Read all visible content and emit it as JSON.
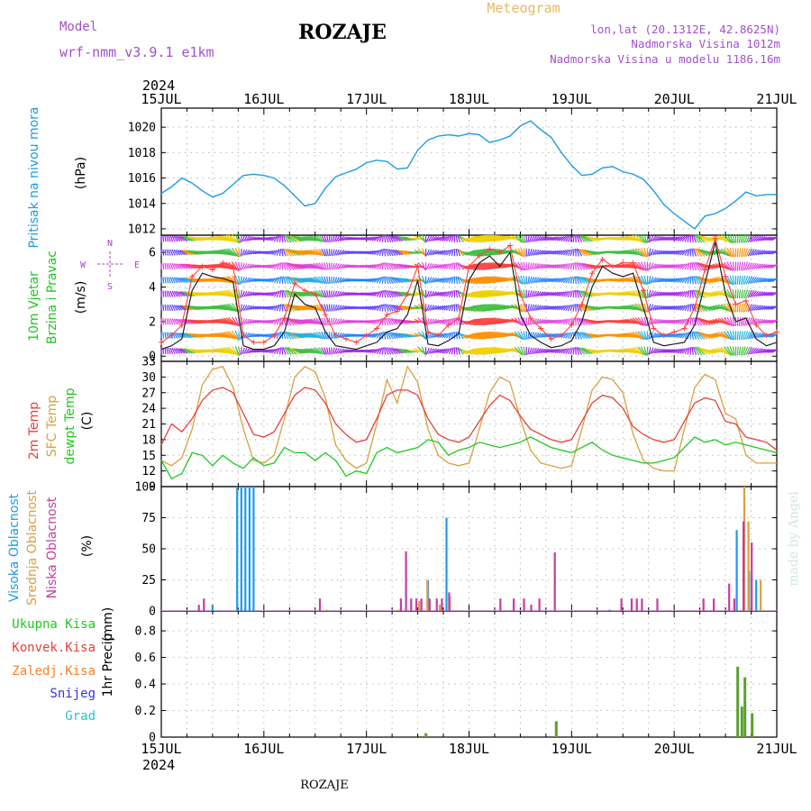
{
  "header": {
    "model_label": "Model",
    "model_name": "wrf-nmm_v3.9.1 e1km",
    "station": "ROZAJE",
    "meteogram": "Meteogram",
    "lonlat": "lon,lat (20.1312E, 42.8625N)",
    "elevation": "Nadmorska Visina 1012m",
    "model_elevation": "Nadmorska Visina u modelu 1186.16m",
    "footer_station": "ROZAJE",
    "credit": "made by Angel"
  },
  "colors": {
    "pressure": "#1e9be6",
    "wind_speed": "#202020",
    "wind_gust": "#ff4040",
    "t2m": "#e8413c",
    "sfc": "#d8a040",
    "dewpt": "#1ec81e",
    "cloud_high": "#1e9be6",
    "cloud_mid": "#d8a040",
    "cloud_low": "#c83ca0",
    "precip_total": "#1ec81e",
    "precip_conv": "#e8413c",
    "precip_frz": "#ff7f27",
    "precip_snow": "#3232dc",
    "precip_grad": "#1ec8c8",
    "wind_label_green": "#1ec81e",
    "compass": "#b040d0",
    "header_purple": "#a050d0",
    "meteogram_color": "#e8b860"
  },
  "chart_data": [
    {
      "type": "line",
      "id": "pressure",
      "ylabel_title": "Pritisak na nivou mora",
      "ylabel_unit": "(hPa)",
      "x_labels": [
        "15JUL",
        "16JUL",
        "17JUL",
        "18JUL",
        "19JUL",
        "20JUL",
        "21JUL"
      ],
      "year": "2024",
      "ylim": [
        1011.5,
        1021.5
      ],
      "yticks": [
        1012,
        1014,
        1016,
        1018,
        1020
      ],
      "x": [
        0,
        0.1,
        0.2,
        0.3,
        0.4,
        0.5,
        0.6,
        0.7,
        0.8,
        0.9,
        1.0,
        1.1,
        1.2,
        1.3,
        1.4,
        1.5,
        1.6,
        1.7,
        1.8,
        1.9,
        2.0,
        2.1,
        2.2,
        2.3,
        2.4,
        2.5,
        2.6,
        2.7,
        2.8,
        2.9,
        3.0,
        3.1,
        3.2,
        3.3,
        3.4,
        3.5,
        3.6,
        3.7,
        3.8,
        3.9,
        4.0,
        4.1,
        4.2,
        4.3,
        4.4,
        4.5,
        4.6,
        4.7,
        4.8,
        4.9,
        5.0,
        5.1,
        5.2,
        5.3,
        5.4,
        5.5,
        5.6,
        5.7,
        5.8,
        5.9,
        6.0
      ],
      "series": [
        {
          "values": [
            1014.8,
            1015.3,
            1016.0,
            1015.6,
            1015.0,
            1014.5,
            1014.8,
            1015.5,
            1016.2,
            1016.3,
            1016.2,
            1016.0,
            1015.4,
            1014.6,
            1013.8,
            1014.0,
            1015.2,
            1016.1,
            1016.4,
            1016.7,
            1017.2,
            1017.4,
            1017.3,
            1016.7,
            1016.8,
            1018.2,
            1019.0,
            1019.3,
            1019.4,
            1019.3,
            1019.5,
            1019.4,
            1018.8,
            1019.0,
            1019.3,
            1020.1,
            1020.5,
            1019.8,
            1019.2,
            1018.0,
            1017.0,
            1016.2,
            1016.3,
            1016.8,
            1016.9,
            1016.5,
            1016.3,
            1015.9,
            1015.0,
            1013.9,
            1013.2,
            1012.6,
            1012.0,
            1013.0,
            1013.2,
            1013.6,
            1014.2,
            1014.9,
            1014.6,
            1014.7,
            1014.7
          ]
        }
      ]
    },
    {
      "type": "line",
      "id": "wind",
      "ylabel_title": "10m Vjetar",
      "ylabel_title2": "Brzina i Pravac",
      "ylabel_unit": "(m/s)",
      "compass": [
        "N",
        "W",
        "E",
        "S"
      ],
      "ylim": [
        -0.3,
        7.0
      ],
      "yticks": [
        0,
        2,
        4,
        6
      ],
      "x": [
        0,
        0.1,
        0.2,
        0.3,
        0.4,
        0.5,
        0.6,
        0.7,
        0.8,
        0.9,
        1.0,
        1.1,
        1.2,
        1.3,
        1.4,
        1.5,
        1.6,
        1.7,
        1.8,
        1.9,
        2.0,
        2.1,
        2.2,
        2.3,
        2.4,
        2.5,
        2.6,
        2.7,
        2.8,
        2.9,
        3.0,
        3.1,
        3.2,
        3.3,
        3.4,
        3.5,
        3.6,
        3.7,
        3.8,
        3.9,
        4.0,
        4.1,
        4.2,
        4.3,
        4.4,
        4.5,
        4.6,
        4.7,
        4.8,
        4.9,
        5.0,
        5.1,
        5.2,
        5.3,
        5.4,
        5.5,
        5.6,
        5.7,
        5.8,
        5.9,
        6.0
      ],
      "series": [
        {
          "name": "speed",
          "values": [
            0.4,
            0.6,
            1.0,
            3.8,
            4.8,
            4.6,
            4.5,
            4.3,
            0.6,
            0.4,
            0.4,
            0.6,
            1.4,
            3.6,
            3.0,
            2.8,
            1.4,
            0.6,
            0.5,
            0.4,
            0.6,
            0.8,
            1.4,
            1.6,
            2.4,
            4.4,
            0.7,
            0.6,
            0.9,
            1.3,
            4.4,
            5.4,
            5.8,
            5.2,
            6.0,
            2.4,
            1.2,
            0.8,
            0.5,
            0.6,
            0.9,
            2.0,
            4.0,
            5.2,
            4.8,
            4.6,
            4.8,
            2.8,
            0.8,
            0.6,
            0.7,
            0.8,
            1.8,
            4.2,
            6.6,
            3.6,
            2.0,
            2.2,
            1.0,
            0.6,
            0.8
          ]
        },
        {
          "name": "gust",
          "values": [
            0.8,
            1.2,
            1.8,
            4.6,
            5.2,
            5.0,
            5.4,
            5.2,
            1.2,
            0.8,
            0.8,
            1.2,
            2.2,
            4.2,
            3.8,
            3.6,
            2.4,
            1.2,
            1.0,
            0.8,
            1.2,
            1.6,
            2.4,
            2.6,
            3.6,
            5.2,
            1.4,
            1.2,
            1.8,
            2.2,
            5.2,
            5.8,
            6.2,
            6.0,
            6.4,
            3.6,
            2.2,
            1.6,
            1.0,
            1.2,
            1.8,
            3.0,
            4.8,
            5.6,
            5.2,
            5.4,
            5.4,
            3.8,
            1.6,
            1.2,
            1.4,
            1.6,
            2.8,
            5.0,
            6.8,
            4.6,
            3.0,
            3.2,
            1.8,
            1.2,
            1.4
          ]
        }
      ],
      "dir_deg": [
        180,
        160,
        130,
        110,
        100,
        100,
        110,
        130,
        200,
        240,
        250,
        230,
        160,
        120,
        110,
        120,
        160,
        200,
        240,
        250,
        250,
        230,
        160,
        130,
        110,
        90,
        200,
        240,
        220,
        160,
        70,
        60,
        60,
        70,
        80,
        150,
        200,
        230,
        240,
        230,
        200,
        140,
        110,
        90,
        100,
        100,
        110,
        150,
        220,
        240,
        240,
        220,
        160,
        120,
        90,
        130,
        180,
        200,
        220,
        240,
        240
      ]
    },
    {
      "type": "line",
      "id": "temperature",
      "ylabel_titles": [
        "2m Temp",
        "SFC Temp",
        "dewpt Temp"
      ],
      "ylabel_unit": "(C)",
      "ylim": [
        9,
        33
      ],
      "yticks": [
        9,
        12,
        15,
        18,
        21,
        24,
        27,
        30,
        33
      ],
      "x": [
        0,
        0.1,
        0.2,
        0.3,
        0.4,
        0.5,
        0.6,
        0.7,
        0.8,
        0.9,
        1.0,
        1.1,
        1.2,
        1.3,
        1.4,
        1.5,
        1.6,
        1.7,
        1.8,
        1.9,
        2.0,
        2.1,
        2.2,
        2.3,
        2.4,
        2.5,
        2.6,
        2.7,
        2.8,
        2.9,
        3.0,
        3.1,
        3.2,
        3.3,
        3.4,
        3.5,
        3.6,
        3.7,
        3.8,
        3.9,
        4.0,
        4.1,
        4.2,
        4.3,
        4.4,
        4.5,
        4.6,
        4.7,
        4.8,
        4.9,
        5.0,
        5.1,
        5.2,
        5.3,
        5.4,
        5.5,
        5.6,
        5.7,
        5.8,
        5.9,
        6.0
      ],
      "series": [
        {
          "name": "2m",
          "values": [
            17,
            21,
            19.5,
            22,
            25.5,
            27.5,
            28,
            27,
            23,
            19,
            18.5,
            19.5,
            23,
            26.5,
            28,
            27.5,
            25,
            21,
            19,
            17.5,
            18,
            22,
            26.5,
            27.5,
            27.5,
            26.5,
            22,
            19,
            18,
            17.5,
            18.5,
            21.5,
            24.5,
            26.5,
            25.5,
            22.5,
            20,
            19,
            18,
            17.5,
            18,
            21.5,
            25,
            26.5,
            26,
            24,
            20.5,
            19,
            18,
            17.5,
            18,
            21.5,
            25,
            26,
            25.5,
            21.5,
            21,
            18.5,
            18,
            17.5,
            16
          ]
        },
        {
          "name": "sfc",
          "values": [
            14,
            13,
            14.5,
            20,
            28.5,
            31.5,
            32,
            28,
            20,
            14,
            13.5,
            15,
            22,
            30,
            32,
            31,
            26,
            17,
            14,
            12.5,
            13.5,
            21,
            29.5,
            25,
            32,
            29,
            20,
            15,
            13.5,
            13,
            13.5,
            20,
            27,
            30,
            29,
            22,
            16,
            13.5,
            13,
            12.5,
            13,
            20,
            27.5,
            30,
            29.5,
            27,
            19,
            14,
            12.5,
            12,
            12,
            20,
            28,
            30.5,
            29.5,
            23,
            22,
            15,
            13.5,
            13.5,
            13.5
          ]
        },
        {
          "name": "dewpt",
          "values": [
            14,
            10.5,
            11.5,
            15.5,
            15,
            13,
            15,
            13.5,
            12.5,
            14.5,
            13,
            13.5,
            16.5,
            15.5,
            15.5,
            14,
            15.5,
            14,
            11,
            12,
            11.5,
            15.5,
            16.5,
            15.5,
            16,
            16.5,
            18,
            17.5,
            15,
            16,
            16.5,
            17.5,
            17,
            16.5,
            17,
            17.5,
            18.5,
            17.5,
            16.5,
            16,
            15.5,
            16.5,
            17.5,
            16,
            15,
            14.5,
            14,
            13.5,
            13.5,
            14,
            14.5,
            16.5,
            18.5,
            17.5,
            18,
            17,
            17.5,
            17,
            16.5,
            16,
            15.5
          ]
        }
      ]
    },
    {
      "type": "bar",
      "id": "clouds",
      "ylabel_titles": [
        "Visoka Oblacnost",
        "Srednja Oblacnost",
        "Niska Oblacnost"
      ],
      "ylabel_unit": "(%)",
      "ylim": [
        0,
        100
      ],
      "yticks": [
        0,
        25,
        50,
        75,
        100
      ],
      "series": [
        {
          "name": "high",
          "points": [
            [
              0.5,
              5
            ],
            [
              0.74,
              100
            ],
            [
              0.78,
              100
            ],
            [
              0.82,
              100
            ],
            [
              0.86,
              100
            ],
            [
              0.9,
              100
            ],
            [
              2.6,
              25
            ],
            [
              2.78,
              75
            ],
            [
              4.37,
              1
            ],
            [
              5.61,
              65
            ],
            [
              5.73,
              32
            ],
            [
              5.8,
              25
            ]
          ]
        },
        {
          "name": "mid",
          "points": [
            [
              1.6,
              1
            ],
            [
              2.3,
              1
            ],
            [
              2.5,
              8
            ],
            [
              2.58,
              25
            ],
            [
              2.7,
              5
            ],
            [
              2.8,
              12
            ],
            [
              5.67,
              100
            ],
            [
              5.71,
              72
            ],
            [
              5.83,
              25
            ]
          ]
        },
        {
          "name": "low",
          "points": [
            [
              0.38,
              5
            ],
            [
              0.43,
              10
            ],
            [
              1.56,
              10
            ],
            [
              2.35,
              10
            ],
            [
              2.4,
              48
            ],
            [
              2.45,
              10
            ],
            [
              2.5,
              10
            ],
            [
              2.55,
              10
            ],
            [
              2.63,
              10
            ],
            [
              2.7,
              10
            ],
            [
              2.75,
              10
            ],
            [
              2.82,
              15
            ],
            [
              3.32,
              10
            ],
            [
              3.45,
              10
            ],
            [
              3.55,
              10
            ],
            [
              3.62,
              5
            ],
            [
              3.7,
              10
            ],
            [
              3.85,
              47
            ],
            [
              4.5,
              10
            ],
            [
              4.6,
              10
            ],
            [
              4.65,
              10
            ],
            [
              4.7,
              10
            ],
            [
              4.85,
              10
            ],
            [
              5.3,
              10
            ],
            [
              5.4,
              10
            ],
            [
              5.55,
              22
            ],
            [
              5.6,
              10
            ],
            [
              5.69,
              72
            ],
            [
              5.77,
              55
            ]
          ]
        }
      ]
    },
    {
      "type": "bar",
      "id": "precip",
      "ylabel_title": "1hr Precip",
      "ylabel_unit": "(mm)",
      "legend": [
        "Ukupna Kisa",
        "Konvek.Kisa",
        "Zaledj.Kisa",
        "Snijeg",
        "Grad"
      ],
      "ylim": [
        0,
        0.95
      ],
      "yticks": [
        0,
        0.2,
        0.4,
        0.6,
        0.8
      ],
      "series": [
        {
          "name": "total",
          "points": [
            [
              2.58,
              0.03
            ],
            [
              3.85,
              0.12
            ],
            [
              5.62,
              0.53
            ],
            [
              5.66,
              0.23
            ],
            [
              5.69,
              0.45
            ],
            [
              5.76,
              0.18
            ]
          ]
        }
      ]
    }
  ]
}
